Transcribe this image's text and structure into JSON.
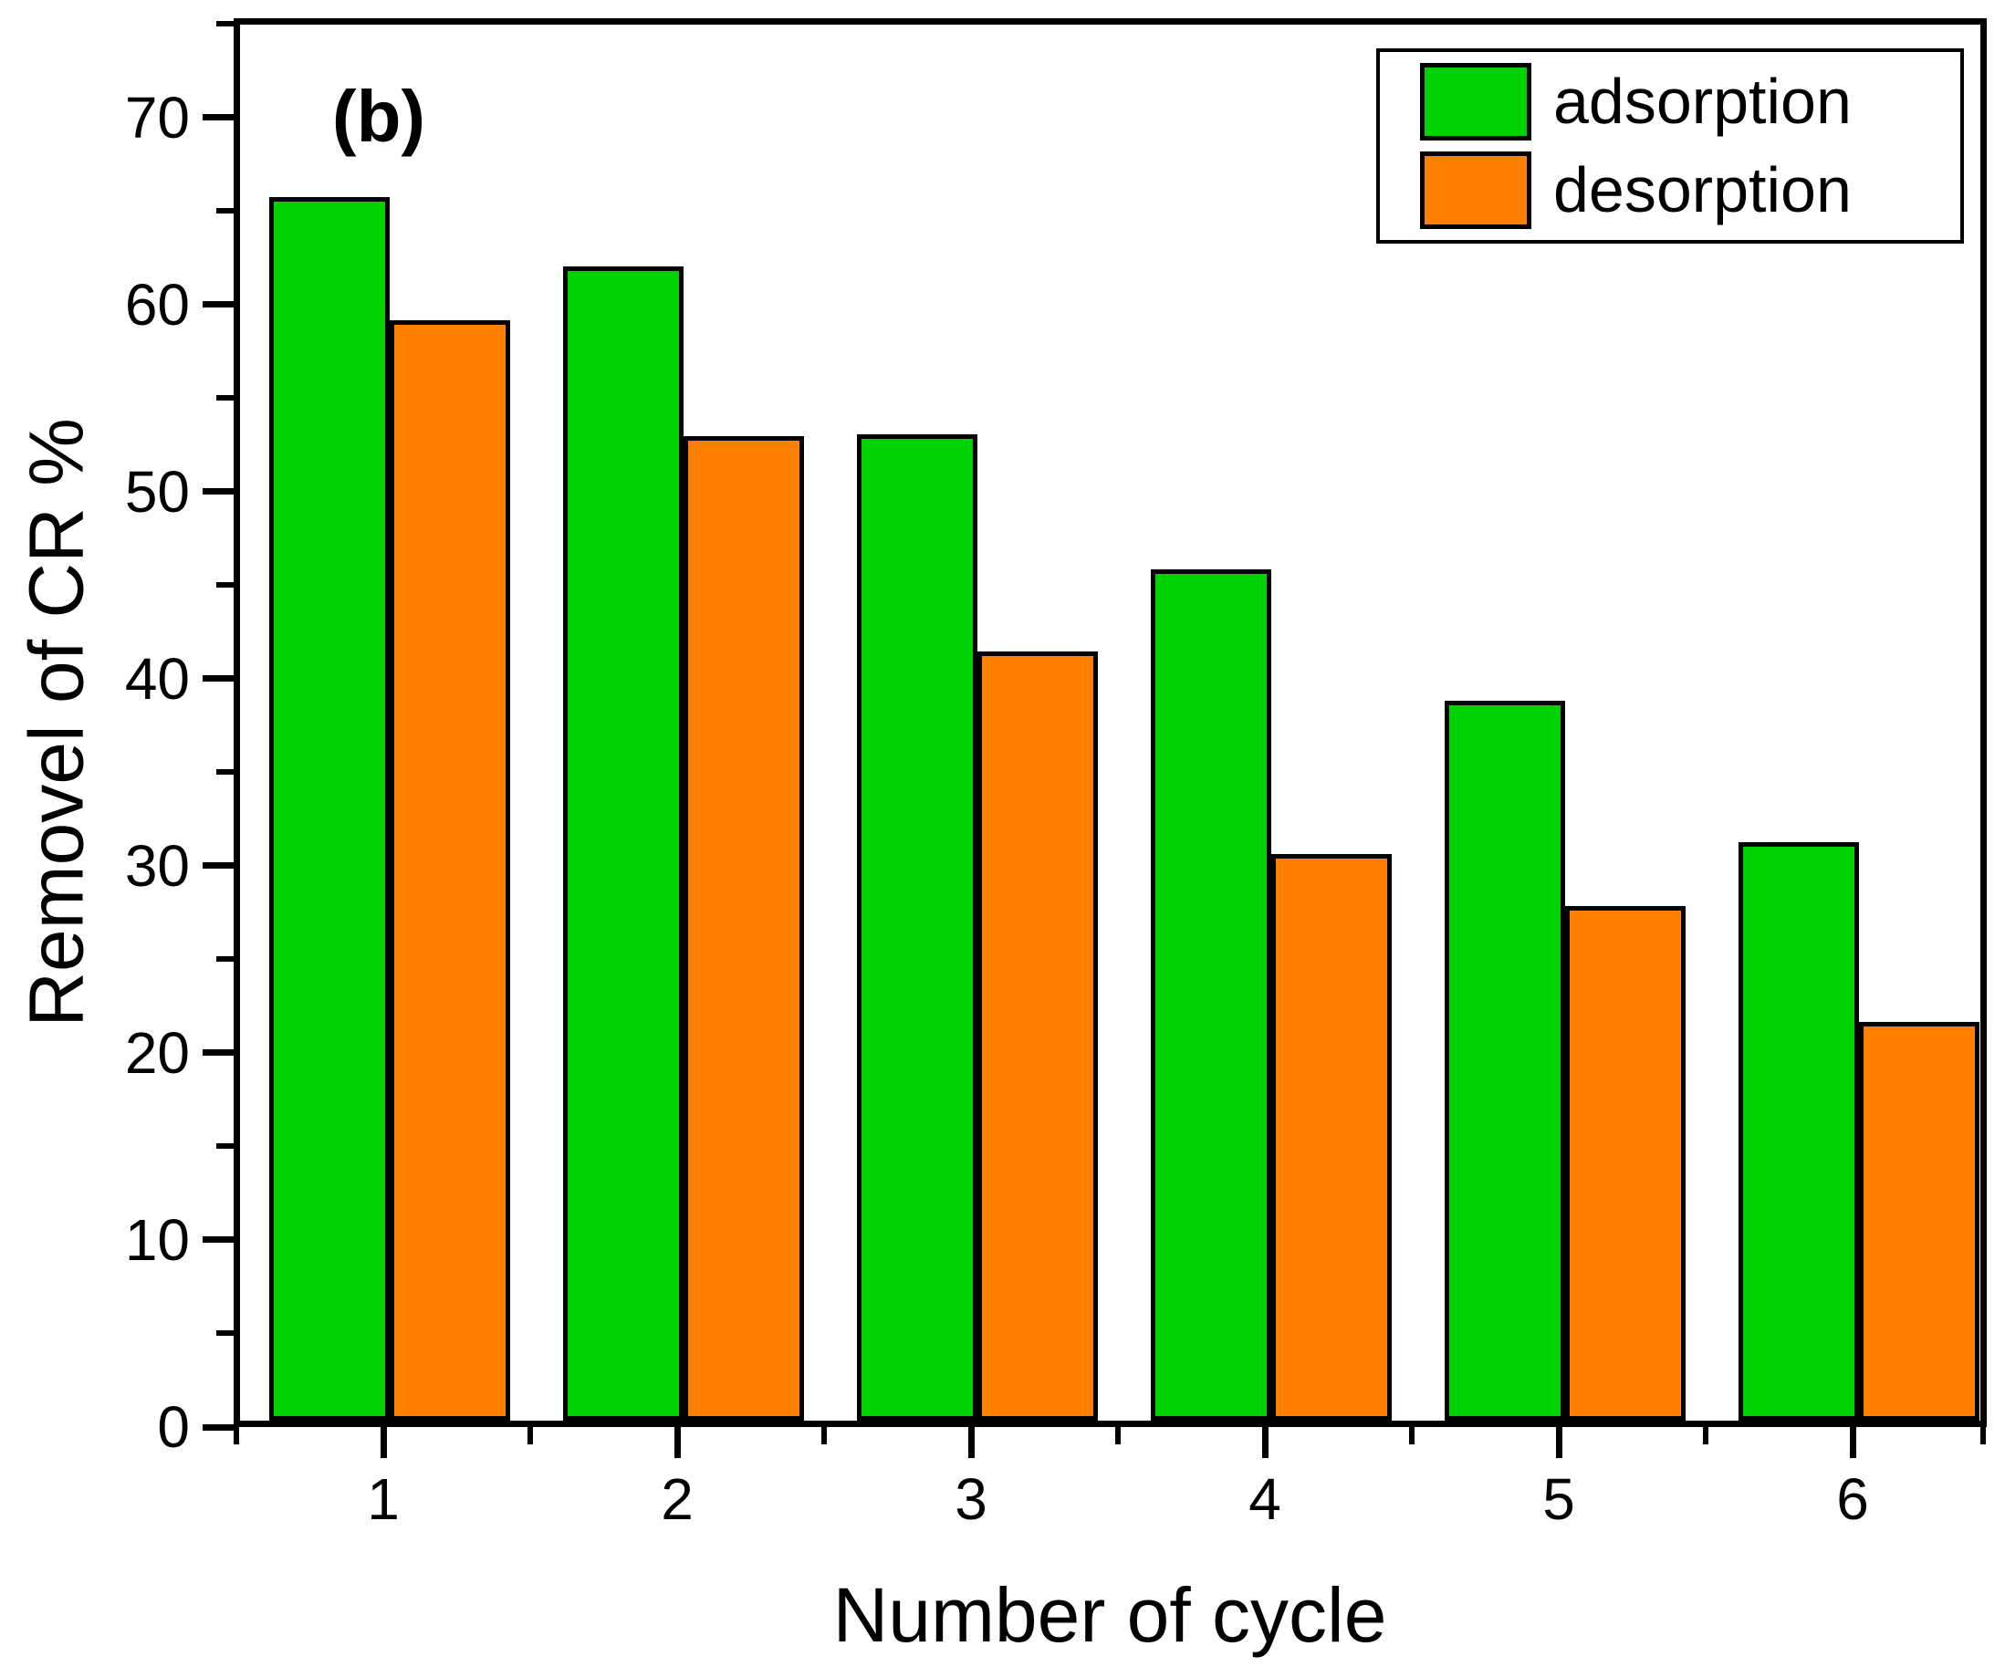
{
  "figure_label": "(b)",
  "chart_data": {
    "type": "bar",
    "title": "",
    "xlabel": "Number of cycle",
    "ylabel": "Removel of CR %",
    "categories": [
      "1",
      "2",
      "3",
      "4",
      "5",
      "6"
    ],
    "series": [
      {
        "name": "adsorption",
        "color": "#00D200",
        "values": [
          65.4,
          61.7,
          52.7,
          45.5,
          38.5,
          30.9
        ]
      },
      {
        "name": "desorption",
        "color": "#FF8000",
        "values": [
          58.8,
          52.6,
          41.1,
          30.3,
          27.5,
          21.3
        ]
      }
    ],
    "ylim": [
      0,
      75.3
    ],
    "y_major_ticks": [
      0,
      10,
      20,
      30,
      40,
      50,
      60,
      70
    ],
    "y_minor_ticks": [
      5,
      15,
      25,
      35,
      45,
      55,
      65,
      75
    ],
    "bar_outline_color": "#000000",
    "axis_color": "#000000",
    "legend_position": "top-right",
    "grid": false
  }
}
